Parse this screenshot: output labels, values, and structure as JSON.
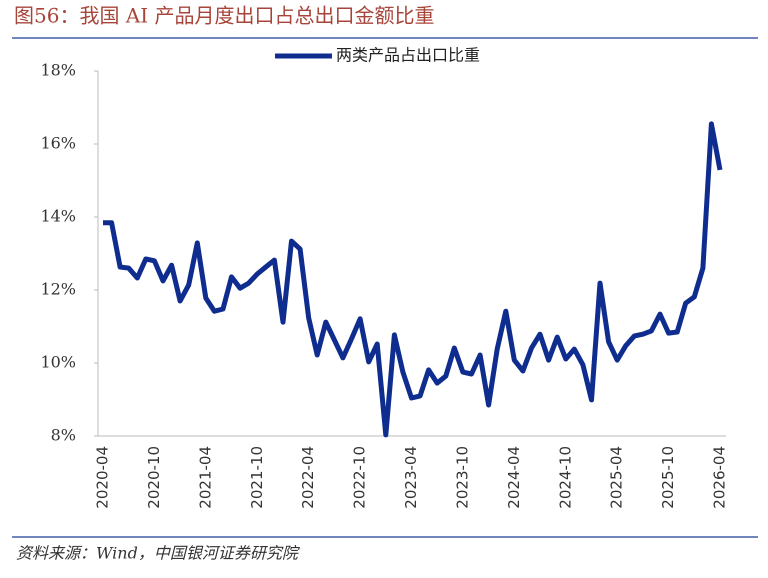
{
  "chart_data": {
    "type": "line",
    "title": "图56：我国 AI 产品月度出口占总出口金额比重",
    "source": "资料来源：Wind，中国银河证券研究院",
    "categories": [
      "2020-04",
      null,
      null,
      null,
      null,
      null,
      "2020-10",
      null,
      null,
      null,
      null,
      null,
      "2021-04",
      null,
      null,
      null,
      null,
      null,
      "2021-10",
      null,
      null,
      null,
      null,
      null,
      "2022-04",
      null,
      null,
      null,
      null,
      null,
      "2022-10",
      null,
      null,
      null,
      null,
      null,
      "2023-04",
      null,
      null,
      null,
      null,
      null,
      "2023-10",
      null,
      null,
      null,
      null,
      null,
      "2024-04",
      null,
      null,
      null,
      null,
      null,
      "2024-10",
      null,
      null,
      null,
      null,
      null,
      "2025-04",
      null,
      null,
      null,
      null,
      null,
      "2025-10",
      null,
      null,
      null,
      null,
      null,
      "2026-04"
    ],
    "series": [
      {
        "name": "两类产品占出口比重",
        "color": "#0e2d8e",
        "values": [
          13.84,
          13.84,
          12.63,
          12.6,
          12.33,
          12.85,
          12.8,
          12.25,
          12.68,
          11.7,
          12.14,
          13.29,
          11.78,
          11.42,
          11.48,
          12.36,
          12.05,
          12.19,
          12.44,
          12.63,
          12.82,
          11.12,
          13.34,
          13.12,
          11.23,
          10.22,
          11.12,
          10.63,
          10.14,
          10.66,
          11.21,
          10.03,
          10.52,
          8.03,
          10.77,
          9.75,
          9.04,
          9.1,
          9.81,
          9.45,
          9.64,
          10.41,
          9.75,
          9.7,
          10.22,
          8.85,
          10.38,
          11.42,
          10.08,
          9.78,
          10.41,
          10.79,
          10.08,
          10.71,
          10.11,
          10.38,
          9.95,
          8.99,
          12.19,
          10.58,
          10.08,
          10.47,
          10.74,
          10.79,
          10.88,
          11.34,
          10.82,
          10.85,
          11.64,
          11.81,
          12.6,
          16.55,
          15.29
        ]
      }
    ],
    "ylim": [
      8,
      18
    ],
    "yticks": [
      {
        "value": 8,
        "label": "8%"
      },
      {
        "value": 10,
        "label": "10%"
      },
      {
        "value": 12,
        "label": "12%"
      },
      {
        "value": 14,
        "label": "14%"
      },
      {
        "value": 16,
        "label": "16%"
      },
      {
        "value": 18,
        "label": "18%"
      }
    ],
    "grid": false
  }
}
